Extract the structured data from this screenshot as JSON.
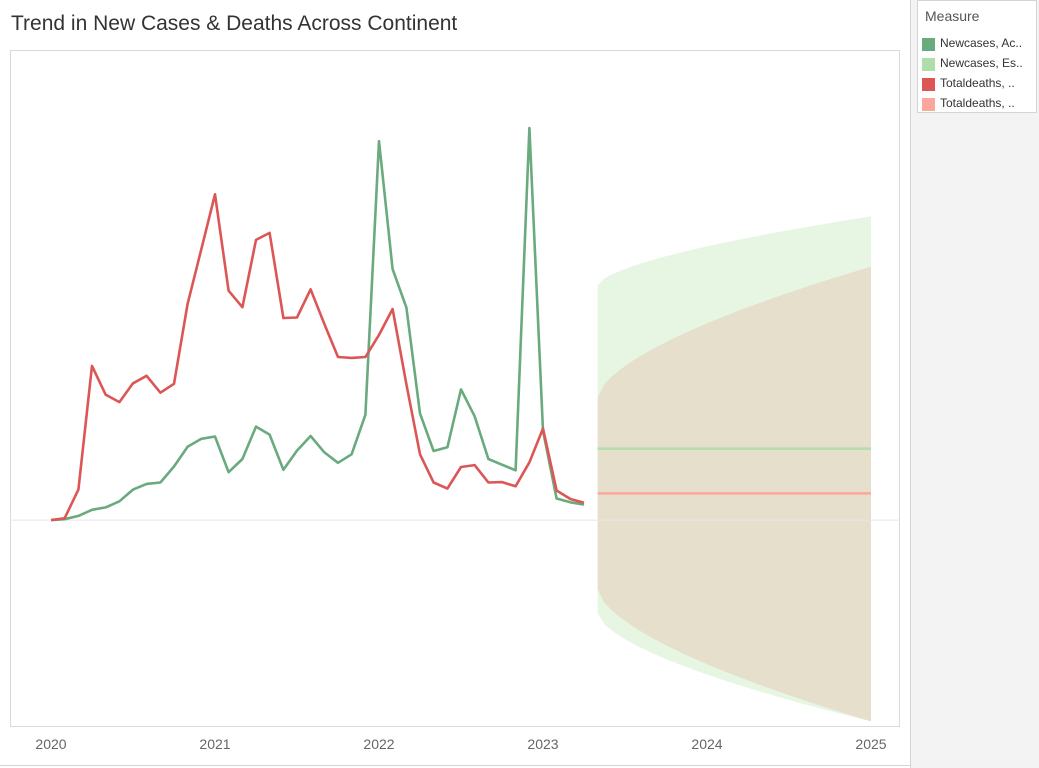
{
  "title": "Trend in New Cases & Deaths Across Continent",
  "legend": {
    "title": "Measure",
    "items": [
      {
        "label": "Newcases, Ac..",
        "color": "#6aaa7e"
      },
      {
        "label": "Newcases, Es..",
        "color": "#b0deaa"
      },
      {
        "label": "Totaldeaths, ..",
        "color": "#dc5656"
      },
      {
        "label": "Totaldeaths, ..",
        "color": "#fca79b"
      }
    ]
  },
  "chart_data": {
    "type": "line",
    "title": "Trend in New Cases & Deaths Across Continent",
    "xlabel": "",
    "ylabel": "",
    "x_ticks": [
      "2020",
      "2021",
      "2022",
      "2023",
      "2024",
      "2025"
    ],
    "xlim": [
      2020.0,
      2025.0
    ],
    "ylim": [
      -44,
      100
    ],
    "zero_line": true,
    "grid": false,
    "legend_position": "right",
    "series": [
      {
        "name": "Newcases, Ac..",
        "role": "actual",
        "color": "#6aaa7e",
        "x": [
          2020.0,
          2020.083,
          2020.167,
          2020.25,
          2020.333,
          2020.417,
          2020.5,
          2020.583,
          2020.667,
          2020.75,
          2020.833,
          2020.917,
          2021.0,
          2021.083,
          2021.167,
          2021.25,
          2021.333,
          2021.417,
          2021.5,
          2021.583,
          2021.667,
          2021.75,
          2021.833,
          2021.917,
          2022.0,
          2022.083,
          2022.167,
          2022.25,
          2022.333,
          2022.417,
          2022.5,
          2022.583,
          2022.667,
          2022.75,
          2022.833,
          2022.917,
          2023.0,
          2023.083,
          2023.167,
          2023.25
        ],
        "values": [
          0.0,
          0.2,
          0.9,
          2.2,
          2.7,
          4.0,
          6.5,
          7.7,
          8.0,
          11.4,
          15.6,
          17.3,
          17.8,
          10.2,
          13.0,
          19.9,
          18.2,
          10.7,
          14.8,
          17.9,
          14.4,
          12.2,
          14.0,
          22.4,
          80.6,
          53.4,
          45.2,
          22.7,
          14.7,
          15.5,
          27.8,
          22.1,
          13.0,
          11.8,
          10.6,
          83.4,
          19.0,
          4.6,
          3.8,
          3.3
        ]
      },
      {
        "name": "Totaldeaths, ..",
        "role": "actual",
        "color": "#dc5656",
        "x": [
          2020.0,
          2020.083,
          2020.167,
          2020.25,
          2020.333,
          2020.417,
          2020.5,
          2020.583,
          2020.667,
          2020.75,
          2020.833,
          2020.917,
          2021.0,
          2021.083,
          2021.167,
          2021.25,
          2021.333,
          2021.417,
          2021.5,
          2021.583,
          2021.667,
          2021.75,
          2021.833,
          2021.917,
          2022.0,
          2022.083,
          2022.167,
          2022.25,
          2022.333,
          2022.417,
          2022.5,
          2022.583,
          2022.667,
          2022.75,
          2022.833,
          2022.917,
          2023.0,
          2023.083,
          2023.167,
          2023.25
        ],
        "values": [
          0.0,
          0.4,
          6.5,
          32.8,
          26.7,
          25.1,
          29.1,
          30.7,
          27.1,
          29.0,
          46.0,
          57.7,
          69.3,
          48.8,
          45.3,
          59.6,
          61.1,
          43.0,
          43.1,
          49.1,
          41.7,
          34.7,
          34.5,
          34.7,
          39.4,
          44.9,
          28.9,
          14.0,
          8.0,
          6.7,
          11.3,
          11.7,
          8.0,
          8.1,
          7.2,
          12.3,
          19.5,
          6.3,
          4.5,
          3.7
        ]
      },
      {
        "name": "Newcases, Es..",
        "role": "estimate",
        "color": "#b0deaa",
        "band_color": "#e5f5e1",
        "x": [
          2023.333,
          2025.0
        ],
        "values": [
          15.2,
          15.2
        ],
        "lower": [
          -19.8,
          -42.8
        ],
        "upper": [
          49.9,
          64.6
        ]
      },
      {
        "name": "Totaldeaths, ..",
        "role": "estimate",
        "color": "#fca79b",
        "band_color": "#fde0dc",
        "x": [
          2023.333,
          2025.0
        ],
        "values": [
          5.7,
          5.7
        ],
        "lower": [
          -14.7,
          -42.8
        ],
        "upper": [
          26.1,
          53.9
        ]
      }
    ]
  }
}
